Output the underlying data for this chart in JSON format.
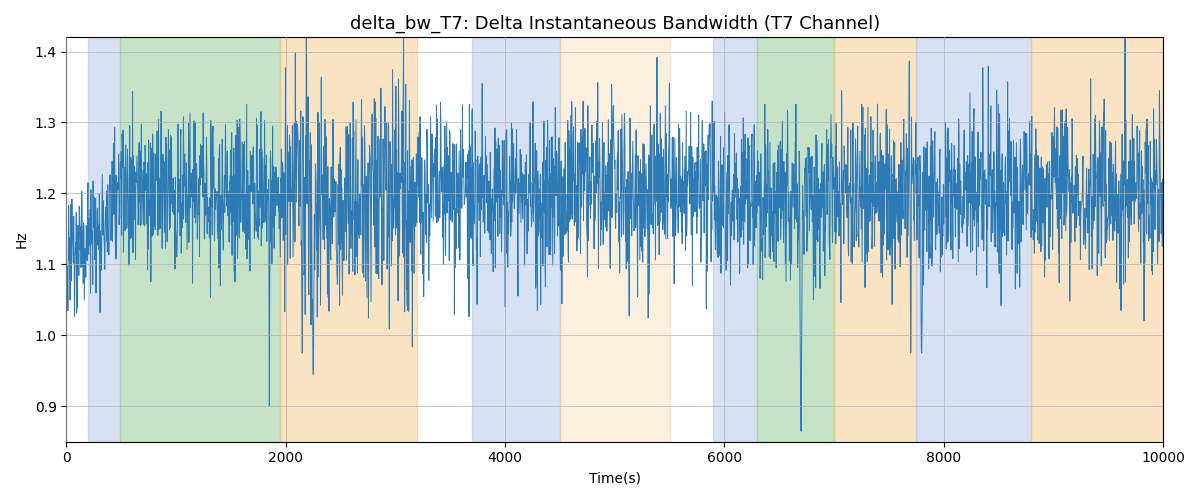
{
  "title": "delta_bw_T7: Delta Instantaneous Bandwidth (T7 Channel)",
  "xlabel": "Time(s)",
  "ylabel": "Hz",
  "xlim": [
    0,
    10000
  ],
  "ylim": [
    0.85,
    1.42
  ],
  "line_color": "#2c7bb6",
  "line_width": 0.7,
  "background_color": "#ffffff",
  "grid_color": "#b0b0b0",
  "seed": 42,
  "n_points": 3000,
  "bands": [
    {
      "xmin": 200,
      "xmax": 490,
      "color": "#aec6e8",
      "alpha": 0.5
    },
    {
      "xmin": 490,
      "xmax": 1950,
      "color": "#90c990",
      "alpha": 0.5
    },
    {
      "xmin": 1950,
      "xmax": 3200,
      "color": "#f5c278",
      "alpha": 0.45
    },
    {
      "xmin": 3700,
      "xmax": 4500,
      "color": "#aec6e8",
      "alpha": 0.5
    },
    {
      "xmin": 4500,
      "xmax": 5500,
      "color": "#f5c278",
      "alpha": 0.25
    },
    {
      "xmin": 5900,
      "xmax": 6300,
      "color": "#aec6e8",
      "alpha": 0.5
    },
    {
      "xmin": 6300,
      "xmax": 7000,
      "color": "#90c990",
      "alpha": 0.5
    },
    {
      "xmin": 7000,
      "xmax": 7750,
      "color": "#f5c278",
      "alpha": 0.45
    },
    {
      "xmin": 7750,
      "xmax": 8800,
      "color": "#aec6e8",
      "alpha": 0.5
    },
    {
      "xmin": 8800,
      "xmax": 10000,
      "color": "#f5c278",
      "alpha": 0.45
    }
  ],
  "figsize": [
    12,
    5
  ],
  "dpi": 100,
  "title_fontsize": 13
}
